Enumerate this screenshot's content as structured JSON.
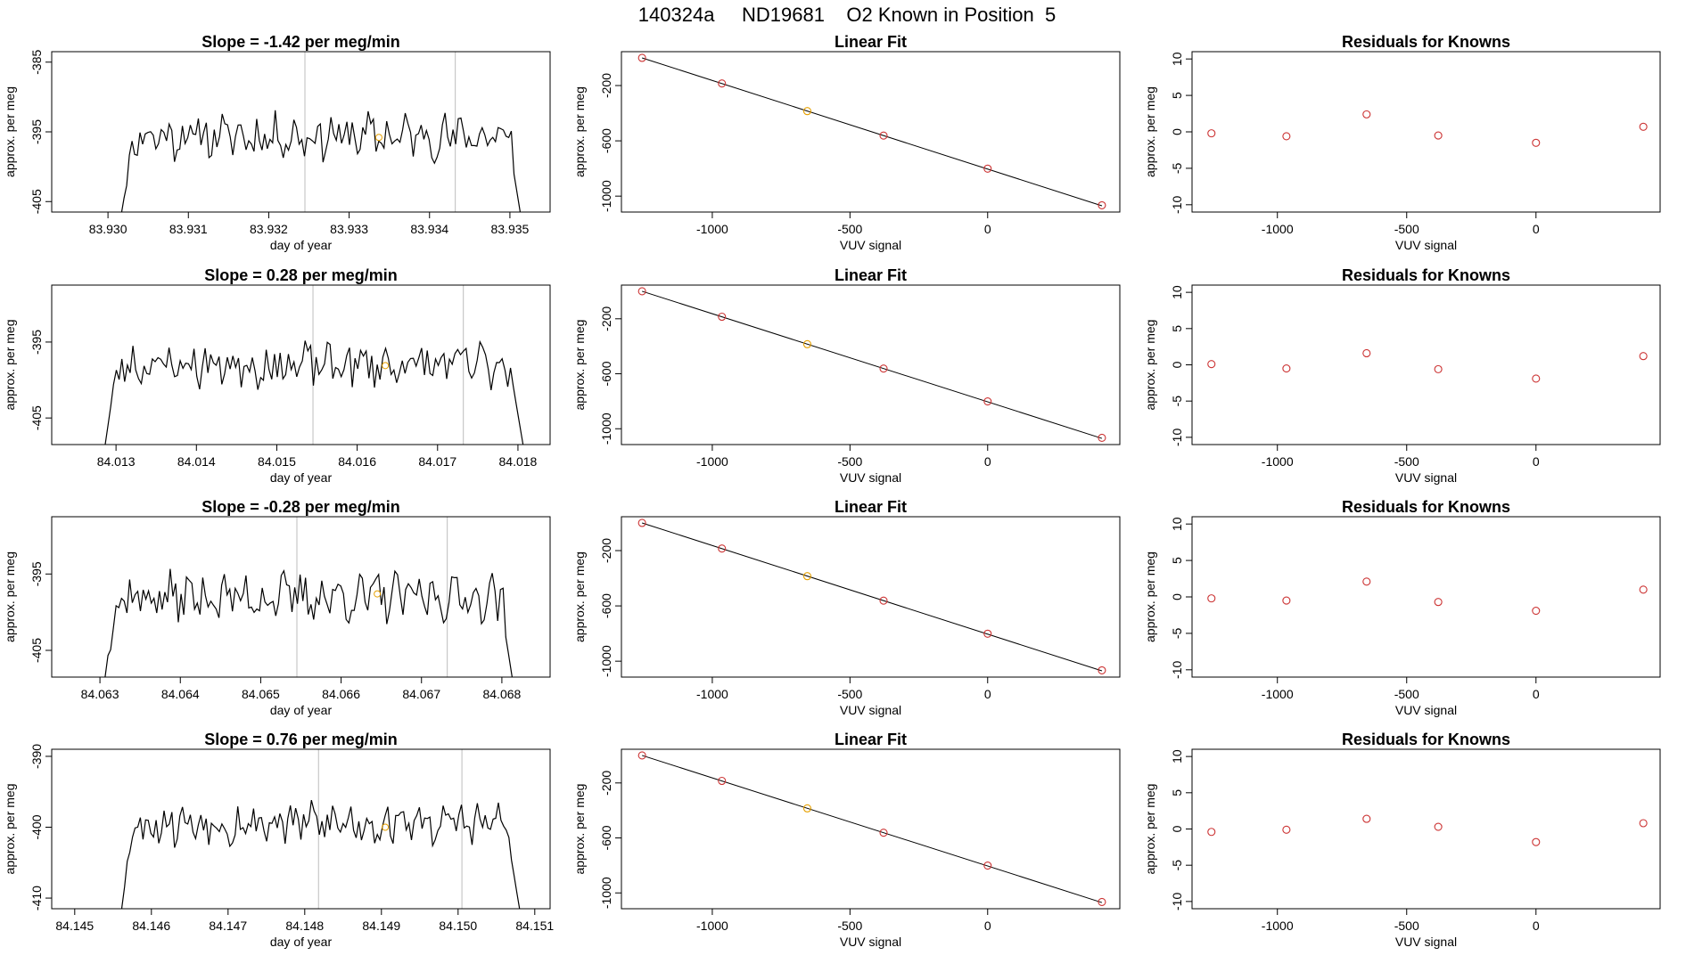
{
  "page": {
    "title": "140324a     ND19681    O2 Known in Position  5"
  },
  "colors": {
    "trace": "#000000",
    "known_point": "#e6a000",
    "fit_point": "#cc3333",
    "vline": "#c8c8c8"
  },
  "chart_data": [
    {
      "type": "line",
      "id": "ts1",
      "title": "Slope =  -1.42  per meg/min",
      "xlabel": "day of year",
      "ylabel": "approx. per meg",
      "xlim": [
        83.9293,
        83.9355
      ],
      "ylim": [
        -406.5,
        -383.5
      ],
      "xticks": [
        83.93,
        83.931,
        83.932,
        83.933,
        83.934,
        83.935
      ],
      "xtick_labels": [
        "83.930",
        "83.931",
        "83.932",
        "83.933",
        "83.934",
        "83.935"
      ],
      "yticks": [
        -385,
        -395,
        -405
      ],
      "vlines": [
        83.93245,
        83.93432
      ],
      "series": [
        {
          "x_start": 83.9302,
          "x_end": 83.93515,
          "mean": -395.6,
          "amp": 2.6,
          "seed": 11
        }
      ],
      "known_point": {
        "x": 83.93337,
        "y": -395.8
      }
    },
    {
      "type": "scatter",
      "id": "lf1",
      "title": "Linear Fit",
      "xlabel": "VUV signal",
      "ylabel": "approx. per meg",
      "xlim": [
        -1330,
        480
      ],
      "ylim": [
        -1115,
        45
      ],
      "xticks": [
        -1000,
        -500,
        0
      ],
      "xtick_labels": [
        "-1000",
        "-500",
        "0"
      ],
      "yticks": [
        -200,
        -600,
        -1000
      ],
      "ytick_labels": [
        "-200",
        "-600",
        "-1000"
      ],
      "fit_line": [
        [
          -1255,
          0
        ],
        [
          415,
          -1070
        ]
      ],
      "points": [
        [
          -1255,
          0
        ],
        [
          -965,
          -185
        ],
        [
          -655,
          -385
        ],
        [
          -378,
          -562
        ],
        [
          0,
          -801
        ],
        [
          415,
          -1066
        ]
      ],
      "known_index": 2
    },
    {
      "type": "scatter",
      "id": "rs1",
      "title": "Residuals for Knowns",
      "xlabel": "VUV signal",
      "ylabel": "approx. per meg",
      "xlim": [
        -1330,
        480
      ],
      "ylim": [
        -11,
        11
      ],
      "xticks": [
        -1000,
        -500,
        0
      ],
      "xtick_labels": [
        "-1000",
        "-500",
        "0"
      ],
      "yticks": [
        10,
        5,
        0,
        -5,
        -10
      ],
      "ytick_labels": [
        "10",
        "5",
        "0",
        "-5",
        "-10"
      ],
      "points": [
        [
          -1255,
          -0.2
        ],
        [
          -965,
          -0.6
        ],
        [
          -655,
          2.4
        ],
        [
          -378,
          -0.5
        ],
        [
          0,
          -1.5
        ],
        [
          415,
          0.7
        ]
      ]
    },
    {
      "type": "line",
      "id": "ts2",
      "title": "Slope =  0.28  per meg/min",
      "xlabel": "day of year",
      "ylabel": "approx. per meg",
      "xlim": [
        84.0122,
        84.0184
      ],
      "ylim": [
        -408.5,
        -387.5
      ],
      "xticks": [
        84.013,
        84.014,
        84.015,
        84.016,
        84.017,
        84.018
      ],
      "xtick_labels": [
        "84.013",
        "84.014",
        "84.015",
        "84.016",
        "84.017",
        "84.018"
      ],
      "yticks": [
        -395,
        -405
      ],
      "vlines": [
        84.01545,
        84.01732
      ],
      "series": [
        {
          "x_start": 84.0129,
          "x_end": 84.01808,
          "mean": -398.0,
          "amp": 2.4,
          "seed": 23
        }
      ],
      "known_point": {
        "x": 84.01635,
        "y": -398.1
      }
    },
    {
      "type": "scatter",
      "id": "lf2",
      "title": "Linear Fit",
      "xlabel": "VUV signal",
      "ylabel": "approx. per meg",
      "xlim": [
        -1330,
        480
      ],
      "ylim": [
        -1115,
        45
      ],
      "xticks": [
        -1000,
        -500,
        0
      ],
      "xtick_labels": [
        "-1000",
        "-500",
        "0"
      ],
      "yticks": [
        -200,
        -600,
        -1000
      ],
      "ytick_labels": [
        "-200",
        "-600",
        "-1000"
      ],
      "fit_line": [
        [
          -1255,
          0
        ],
        [
          415,
          -1070
        ]
      ],
      "points": [
        [
          -1255,
          0
        ],
        [
          -965,
          -185
        ],
        [
          -655,
          -385
        ],
        [
          -378,
          -562
        ],
        [
          0,
          -801
        ],
        [
          415,
          -1066
        ]
      ],
      "known_index": 2
    },
    {
      "type": "scatter",
      "id": "rs2",
      "title": "Residuals for Knowns",
      "xlabel": "VUV signal",
      "ylabel": "approx. per meg",
      "xlim": [
        -1330,
        480
      ],
      "ylim": [
        -11,
        11
      ],
      "xticks": [
        -1000,
        -500,
        0
      ],
      "xtick_labels": [
        "-1000",
        "-500",
        "0"
      ],
      "yticks": [
        10,
        5,
        0,
        -5,
        -10
      ],
      "ytick_labels": [
        "10",
        "5",
        "0",
        "-5",
        "-10"
      ],
      "points": [
        [
          -1255,
          0.1
        ],
        [
          -965,
          -0.5
        ],
        [
          -655,
          1.6
        ],
        [
          -378,
          -0.6
        ],
        [
          0,
          -1.9
        ],
        [
          415,
          1.2
        ]
      ]
    },
    {
      "type": "line",
      "id": "ts3",
      "title": "Slope =  -0.28  per meg/min",
      "xlabel": "day of year",
      "ylabel": "approx. per meg",
      "xlim": [
        84.0624,
        84.0686
      ],
      "ylim": [
        -408.5,
        -387.5
      ],
      "xticks": [
        84.063,
        84.064,
        84.065,
        84.066,
        84.067,
        84.068
      ],
      "xtick_labels": [
        "84.063",
        "84.064",
        "84.065",
        "84.066",
        "84.067",
        "84.068"
      ],
      "yticks": [
        -395,
        -405
      ],
      "vlines": [
        84.06545,
        84.06732
      ],
      "series": [
        {
          "x_start": 84.0631,
          "x_end": 84.06815,
          "mean": -398.0,
          "amp": 2.5,
          "seed": 37
        }
      ],
      "known_point": {
        "x": 84.06645,
        "y": -397.6
      }
    },
    {
      "type": "scatter",
      "id": "lf3",
      "title": "Linear Fit",
      "xlabel": "VUV signal",
      "ylabel": "approx. per meg",
      "xlim": [
        -1330,
        480
      ],
      "ylim": [
        -1115,
        45
      ],
      "xticks": [
        -1000,
        -500,
        0
      ],
      "xtick_labels": [
        "-1000",
        "-500",
        "0"
      ],
      "yticks": [
        -200,
        -600,
        -1000
      ],
      "ytick_labels": [
        "-200",
        "-600",
        "-1000"
      ],
      "fit_line": [
        [
          -1255,
          0
        ],
        [
          415,
          -1070
        ]
      ],
      "points": [
        [
          -1255,
          0
        ],
        [
          -965,
          -185
        ],
        [
          -655,
          -385
        ],
        [
          -378,
          -562
        ],
        [
          0,
          -801
        ],
        [
          415,
          -1066
        ]
      ],
      "known_index": 2
    },
    {
      "type": "scatter",
      "id": "rs3",
      "title": "Residuals for Knowns",
      "xlabel": "VUV signal",
      "ylabel": "approx. per meg",
      "xlim": [
        -1330,
        480
      ],
      "ylim": [
        -11,
        11
      ],
      "xticks": [
        -1000,
        -500,
        0
      ],
      "xtick_labels": [
        "-1000",
        "-500",
        "0"
      ],
      "yticks": [
        10,
        5,
        0,
        -5,
        -10
      ],
      "ytick_labels": [
        "10",
        "5",
        "0",
        "-5",
        "-10"
      ],
      "points": [
        [
          -1255,
          -0.2
        ],
        [
          -965,
          -0.5
        ],
        [
          -655,
          2.1
        ],
        [
          -378,
          -0.7
        ],
        [
          0,
          -1.9
        ],
        [
          415,
          1.0
        ]
      ]
    },
    {
      "type": "line",
      "id": "ts4",
      "title": "Slope =  0.76  per meg/min",
      "xlabel": "day of year",
      "ylabel": "approx. per meg",
      "xlim": [
        84.1447,
        84.1512
      ],
      "ylim": [
        -411.5,
        -389.0
      ],
      "xticks": [
        84.145,
        84.146,
        84.147,
        84.148,
        84.149,
        84.15,
        84.151
      ],
      "xtick_labels": [
        "84.145",
        "84.146",
        "84.147",
        "84.148",
        "84.149",
        "84.150",
        "84.151"
      ],
      "yticks": [
        -390,
        -400,
        -410
      ],
      "vlines": [
        84.14818,
        84.15005
      ],
      "series": [
        {
          "x_start": 84.14565,
          "x_end": 84.1508,
          "mean": -399.4,
          "amp": 2.5,
          "seed": 53
        }
      ],
      "known_point": {
        "x": 84.14905,
        "y": -400.0
      }
    },
    {
      "type": "scatter",
      "id": "lf4",
      "title": "Linear Fit",
      "xlabel": "VUV signal",
      "ylabel": "approx. per meg",
      "xlim": [
        -1330,
        480
      ],
      "ylim": [
        -1115,
        45
      ],
      "xticks": [
        -1000,
        -500,
        0
      ],
      "xtick_labels": [
        "-1000",
        "-500",
        "0"
      ],
      "yticks": [
        -200,
        -600,
        -1000
      ],
      "ytick_labels": [
        "-200",
        "-600",
        "-1000"
      ],
      "fit_line": [
        [
          -1255,
          0
        ],
        [
          415,
          -1070
        ]
      ],
      "points": [
        [
          -1255,
          0
        ],
        [
          -965,
          -185
        ],
        [
          -655,
          -385
        ],
        [
          -378,
          -562
        ],
        [
          0,
          -801
        ],
        [
          415,
          -1066
        ]
      ],
      "known_index": 2
    },
    {
      "type": "scatter",
      "id": "rs4",
      "title": "Residuals for Knowns",
      "xlabel": "VUV signal",
      "ylabel": "approx. per meg",
      "xlim": [
        -1330,
        480
      ],
      "ylim": [
        -11,
        11
      ],
      "xticks": [
        -1000,
        -500,
        0
      ],
      "xtick_labels": [
        "-1000",
        "-500",
        "0"
      ],
      "yticks": [
        10,
        5,
        0,
        -5,
        -10
      ],
      "ytick_labels": [
        "10",
        "5",
        "0",
        "-5",
        "-10"
      ],
      "points": [
        [
          -1255,
          -0.4
        ],
        [
          -965,
          -0.1
        ],
        [
          -655,
          1.4
        ],
        [
          -378,
          0.3
        ],
        [
          0,
          -1.8
        ],
        [
          415,
          0.8
        ]
      ]
    }
  ]
}
